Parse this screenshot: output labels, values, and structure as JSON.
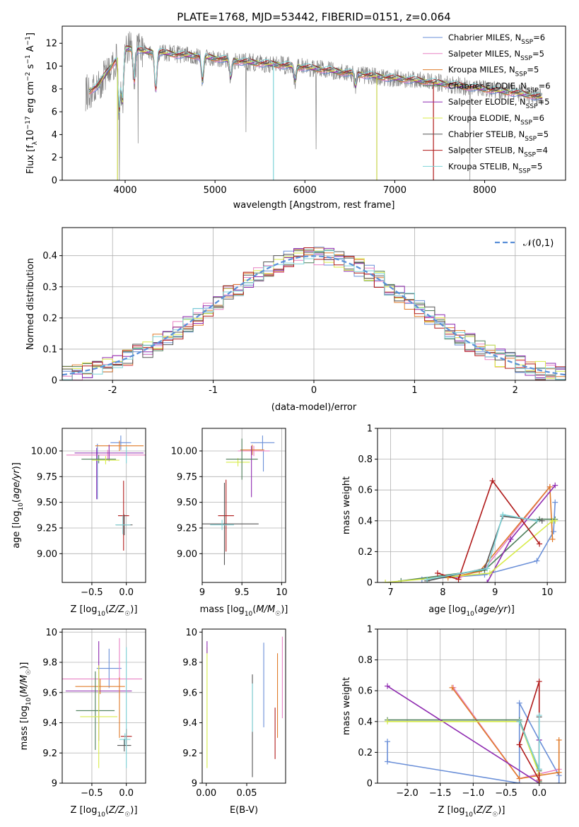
{
  "title": "PLATE=1768, MJD=53442, FIBERID=0151, z=0.064",
  "colors": {
    "Chabrier MILES": "#6a8fd8",
    "Salpeter MILES": "#e882c4",
    "Kroupa MILES": "#e07b2a",
    "Chabrier ELODIE": "#4e7f5a",
    "Salpeter ELODIE": "#8e2ab0",
    "Kroupa ELODIE": "#d8ec4a",
    "Chabrier STELIB": "#555555",
    "Salpeter STELIB": "#b01a1a",
    "Kroupa STELIB": "#7ed4d8",
    "data": "#808080"
  },
  "chart_data": [
    {
      "id": "spectrum",
      "type": "line",
      "title": "PLATE=1768, MJD=53442, FIBERID=0151, z=0.064",
      "xlabel": "wavelength [Angstrom, rest frame]",
      "ylabel": "Flux [f_λ 10^-17 erg cm^-2 s^-1 A^-1]",
      "xlim": [
        3300,
        8900
      ],
      "ylim": [
        0,
        13.5
      ],
      "xticks": [
        4000,
        5000,
        6000,
        7000,
        8000
      ],
      "yticks": [
        0,
        2,
        4,
        6,
        8,
        10,
        12
      ],
      "grid": false,
      "legend": "top-right",
      "legend_entries": [
        "Chabrier MILES, N_SSP=6",
        "Salpeter MILES, N_SSP=5",
        "Kroupa MILES, N_SSP=5",
        "Chabrier ELODIE, N_SSP=6",
        "Salpeter ELODIE, N_SSP=5",
        "Kroupa ELODIE, N_SSP=6",
        "Chabrier STELIB, N_SSP=5",
        "Salpeter STELIB, N_SSP=4",
        "Kroupa STELIB, N_SSP=5"
      ],
      "continuum": {
        "x": [
          3560,
          3700,
          3800,
          3900,
          4000,
          4100,
          4200,
          4400,
          4600,
          4800,
          5000,
          5300,
          5600,
          6000,
          6300,
          6600,
          6900,
          7200,
          7500,
          7800,
          8100,
          8400,
          8600
        ],
        "y": [
          7.6,
          8.3,
          9.5,
          10.6,
          11.5,
          11.6,
          11.3,
          11.2,
          11.0,
          10.9,
          10.7,
          10.4,
          10.2,
          9.9,
          9.6,
          9.3,
          9.0,
          8.8,
          8.5,
          8.2,
          7.9,
          7.6,
          7.3
        ]
      }
    },
    {
      "id": "residuals",
      "type": "line",
      "xlabel": "(data-model)/error",
      "ylabel": "Normed distribution",
      "xlim": [
        -2.5,
        2.5
      ],
      "ylim": [
        0,
        0.49
      ],
      "xticks": [
        -2,
        -1,
        0,
        1,
        2
      ],
      "yticks": [
        0.0,
        0.1,
        0.2,
        0.3,
        0.4
      ],
      "grid": true,
      "legend": "top-right",
      "legend_entries": [
        "𝒩(0,1)"
      ],
      "bin_width": 0.1
    },
    {
      "id": "age-vs-Z",
      "type": "scatter",
      "xlabel": "Z [log10(Z/Z☉)]",
      "ylabel": "age [log10(age/yr)]",
      "xlim": [
        -0.93,
        0.28
      ],
      "ylim": [
        8.72,
        10.22
      ],
      "xticks": [
        -0.5,
        0.0
      ],
      "yticks": [
        9.0,
        9.25,
        9.5,
        9.75,
        10.0
      ],
      "tick_labels_x": [
        "−0.5",
        "0.0"
      ],
      "tick_labels_y": [
        "9.00",
        "9.25",
        "9.50",
        "9.75",
        "10.00"
      ],
      "grid": true,
      "points": [
        {
          "model": "Chabrier MILES",
          "x": -0.08,
          "y": 10.08,
          "xerr": 0.15,
          "yerr": 0.07
        },
        {
          "model": "Chabrier MILES",
          "x": -0.42,
          "y": 9.8,
          "xerr": 0.0,
          "yerr": 0.27
        },
        {
          "model": "Kroupa MILES",
          "x": -0.1,
          "y": 10.05,
          "xerr": 0.35,
          "yerr": 0.05
        },
        {
          "model": "Salpeter MILES",
          "x": -0.27,
          "y": 9.96,
          "xerr": 0.6,
          "yerr": 0.05
        },
        {
          "model": "Salpeter ELODIE",
          "x": -0.25,
          "y": 9.98,
          "xerr": 0.5,
          "yerr": 0.08
        },
        {
          "model": "Salpeter ELODIE",
          "x": -0.43,
          "y": 9.78,
          "xerr": 0.0,
          "yerr": 0.25
        },
        {
          "model": "Chabrier ELODIE",
          "x": -0.4,
          "y": 9.92,
          "xerr": 0.25,
          "yerr": 0.04
        },
        {
          "model": "Kroupa ELODIE",
          "x": -0.3,
          "y": 9.91,
          "xerr": 0.2,
          "yerr": 0.04
        },
        {
          "model": "Kroupa STELIB",
          "x": 0.0,
          "y": 9.96,
          "xerr": 0.0,
          "yerr": 0.08
        },
        {
          "model": "Salpeter STELIB",
          "x": -0.04,
          "y": 9.37,
          "xerr": 0.08,
          "yerr": 0.34
        },
        {
          "model": "Chabrier STELIB",
          "x": -0.03,
          "y": 9.28,
          "xerr": 0.12,
          "yerr": 0.1
        },
        {
          "model": "Kroupa STELIB",
          "x": -0.05,
          "y": 9.28,
          "xerr": 0.11,
          "yerr": 0.09
        }
      ]
    },
    {
      "id": "age-vs-mass",
      "type": "scatter",
      "xlabel": "mass [log10(M/M☉)]",
      "xlim": [
        9.0,
        10.05
      ],
      "ylim": [
        8.72,
        10.22
      ],
      "xticks": [
        9.0,
        9.5,
        10.0
      ],
      "yticks": [
        9.0,
        9.25,
        9.5,
        9.75,
        10.0
      ],
      "tick_labels_y": [
        "9.00",
        "9.25",
        "9.50",
        "9.75",
        "10.00"
      ],
      "grid": true,
      "points": [
        {
          "model": "Chabrier MILES",
          "x": 9.76,
          "y": 10.08,
          "xerr": 0.15,
          "yerr": 0.07
        },
        {
          "model": "Chabrier MILES",
          "x": 9.77,
          "y": 9.9,
          "xerr": 0.0,
          "yerr": 0.1
        },
        {
          "model": "Salpeter MILES",
          "x": 9.65,
          "y": 10.0,
          "xerr": 0.2,
          "yerr": 0.05
        },
        {
          "model": "Kroupa MILES",
          "x": 9.63,
          "y": 10.01,
          "xerr": 0.15,
          "yerr": 0.05
        },
        {
          "model": "Salpeter ELODIE",
          "x": 9.62,
          "y": 9.8,
          "xerr": 0.0,
          "yerr": 0.25
        },
        {
          "model": "Kroupa ELODIE",
          "x": 9.45,
          "y": 9.89,
          "xerr": 0.15,
          "yerr": 0.04
        },
        {
          "model": "Chabrier ELODIE",
          "x": 9.5,
          "y": 9.92,
          "xerr": 0.2,
          "yerr": 0.2
        },
        {
          "model": "Salpeter STELIB",
          "x": 9.3,
          "y": 9.37,
          "xerr": 0.1,
          "yerr": 0.35
        },
        {
          "model": "Chabrier STELIB",
          "x": 9.28,
          "y": 9.29,
          "xerr": 0.43,
          "yerr": 0.4
        },
        {
          "model": "Kroupa STELIB",
          "x": 9.25,
          "y": 9.28,
          "xerr": 0.15,
          "yerr": 0.05
        }
      ]
    },
    {
      "id": "massweight-vs-age",
      "type": "line",
      "xlabel": "age [log10(age/yr)]",
      "ylabel": "mass weight",
      "xlim": [
        6.75,
        10.35
      ],
      "ylim": [
        0,
        1.0
      ],
      "xticks": [
        7,
        8,
        9,
        10
      ],
      "yticks": [
        0.0,
        0.2,
        0.4,
        0.6,
        0.8,
        1.0
      ],
      "grid": true,
      "series": [
        {
          "model": "Chabrier MILES",
          "x": [
            7.6,
            8.8,
            9.8,
            10.12,
            10.15
          ],
          "y": [
            0.02,
            0.05,
            0.14,
            0.33,
            0.52
          ]
        },
        {
          "model": "Salpeter MILES",
          "x": [
            8.3,
            8.8,
            10.05
          ],
          "y": [
            0.03,
            0.09,
            0.62
          ]
        },
        {
          "model": "Kroupa MILES",
          "x": [
            8.1,
            8.7,
            10.05,
            10.1
          ],
          "y": [
            0.03,
            0.07,
            0.62,
            0.28
          ]
        },
        {
          "model": "Chabrier ELODIE",
          "x": [
            7.2,
            8.8,
            9.85,
            10.15
          ],
          "y": [
            0.01,
            0.08,
            0.41,
            0.41
          ]
        },
        {
          "model": "Salpeter ELODIE",
          "x": [
            8.85,
            9.3,
            10.15
          ],
          "y": [
            0.0,
            0.28,
            0.63
          ]
        },
        {
          "model": "Kroupa ELODIE",
          "x": [
            6.9,
            8.9,
            10.1,
            10.15
          ],
          "y": [
            0.0,
            0.06,
            0.4,
            0.4
          ]
        },
        {
          "model": "Chabrier STELIB",
          "x": [
            7.7,
            8.8,
            9.15,
            9.9
          ],
          "y": [
            0.01,
            0.09,
            0.43,
            0.4
          ]
        },
        {
          "model": "Salpeter STELIB",
          "x": [
            7.9,
            8.3,
            8.95,
            9.85
          ],
          "y": [
            0.06,
            0.02,
            0.66,
            0.25
          ]
        },
        {
          "model": "Kroupa STELIB",
          "x": [
            7.7,
            8.85,
            9.15,
            9.8
          ],
          "y": [
            0.02,
            0.09,
            0.44,
            0.4
          ]
        }
      ]
    },
    {
      "id": "mass-vs-Z",
      "type": "scatter",
      "xlabel": "Z [log10(Z/Z☉)]",
      "ylabel": "mass [log10(M/M☉)]",
      "xlim": [
        -0.93,
        0.28
      ],
      "ylim": [
        9.0,
        10.02
      ],
      "xticks": [
        -0.5,
        0.0
      ],
      "tick_labels_x": [
        "−0.5",
        "0.0"
      ],
      "yticks": [
        9.0,
        9.2,
        9.4,
        9.6,
        9.8,
        10.0
      ],
      "grid": true,
      "points": [
        {
          "model": "Chabrier MILES",
          "x": -0.25,
          "y": 9.76,
          "xerr": 0.18,
          "yerr": 0.13
        },
        {
          "model": "Salpeter MILES",
          "x": -0.4,
          "y": 9.69,
          "xerr": 0.63,
          "yerr": 0.05
        },
        {
          "model": "Kroupa MILES",
          "x": -0.38,
          "y": 9.64,
          "xerr": 0.36,
          "yerr": 0.05
        },
        {
          "model": "Salpeter ELODIE",
          "x": -0.4,
          "y": 9.61,
          "xerr": 0.48,
          "yerr": 0.33
        },
        {
          "model": "Chabrier ELODIE",
          "x": -0.45,
          "y": 9.48,
          "xerr": 0.28,
          "yerr": 0.26
        },
        {
          "model": "Kroupa ELODIE",
          "x": -0.4,
          "y": 9.44,
          "xerr": 0.27,
          "yerr": 0.34
        },
        {
          "model": "Salpeter MILES",
          "x": -0.1,
          "y": 9.76,
          "xerr": 0.0,
          "yerr": 0.2
        },
        {
          "model": "Kroupa MILES",
          "x": -0.1,
          "y": 9.5,
          "xerr": 0.0,
          "yerr": 0.2
        },
        {
          "model": "Salpeter STELIB",
          "x": 0.0,
          "y": 9.31,
          "xerr": 0.08,
          "yerr": 0.05
        },
        {
          "model": "Kroupa STELIB",
          "x": -0.02,
          "y": 9.29,
          "xerr": 0.08,
          "yerr": 0.04
        },
        {
          "model": "Chabrier STELIB",
          "x": -0.03,
          "y": 9.25,
          "xerr": 0.1,
          "yerr": 0.04
        },
        {
          "model": "Kroupa STELIB",
          "x": 0.0,
          "y": 9.5,
          "xerr": 0.0,
          "yerr": 0.4
        }
      ]
    },
    {
      "id": "mass-vs-EBV",
      "type": "scatter",
      "xlabel": "E(B-V)",
      "xlim": [
        -0.005,
        0.098
      ],
      "ylim": [
        9.0,
        10.02
      ],
      "xticks": [
        0.0,
        0.05
      ],
      "tick_labels_x": [
        "0.00",
        "0.05"
      ],
      "yticks": [
        9.0,
        9.2,
        9.4,
        9.6,
        9.8,
        10.0
      ],
      "grid": false,
      "points": [
        {
          "model": "Kroupa ELODIE",
          "x": 0.001,
          "y": 9.5,
          "xerr": 0.0,
          "yerr": 0.4
        },
        {
          "model": "Salpeter ELODIE",
          "x": 0.001,
          "y": 9.9,
          "xerr": 0.0,
          "yerr": 0.04
        },
        {
          "model": "Chabrier STELIB",
          "x": 0.057,
          "y": 9.38,
          "xerr": 0.0,
          "yerr": 0.34
        },
        {
          "model": "Kroupa STELIB",
          "x": 0.057,
          "y": 9.5,
          "xerr": 0.0,
          "yerr": 0.16
        },
        {
          "model": "Chabrier MILES",
          "x": 0.071,
          "y": 9.65,
          "xerr": 0.0,
          "yerr": 0.28
        },
        {
          "model": "Salpeter STELIB",
          "x": 0.085,
          "y": 9.33,
          "xerr": 0.0,
          "yerr": 0.17
        },
        {
          "model": "Kroupa MILES",
          "x": 0.088,
          "y": 9.58,
          "xerr": 0.0,
          "yerr": 0.28
        },
        {
          "model": "Salpeter MILES",
          "x": 0.094,
          "y": 9.7,
          "xerr": 0.0,
          "yerr": 0.27
        }
      ]
    },
    {
      "id": "massweight-vs-Z",
      "type": "line",
      "xlabel": "Z [log10(Z/Z☉)]",
      "ylabel": "mass weight",
      "xlim": [
        -2.45,
        0.4
      ],
      "ylim": [
        0,
        1.0
      ],
      "xticks": [
        -2.0,
        -1.5,
        -1.0,
        -0.5,
        0.0
      ],
      "tick_labels_x": [
        "−2.0",
        "−1.5",
        "−1.0",
        "−0.5",
        "0.0"
      ],
      "yticks": [
        0.0,
        0.2,
        0.4,
        0.6,
        0.8,
        1.0
      ],
      "grid": true,
      "series": [
        {
          "model": "Chabrier MILES",
          "x": [
            -2.3,
            -2.3,
            -0.3,
            -0.3,
            0.0,
            0.3,
            0.3
          ],
          "y": [
            0.27,
            0.14,
            0.0,
            0.52,
            0.28,
            0.05,
            0.0
          ]
        },
        {
          "model": "Salpeter MILES",
          "x": [
            -1.3,
            -0.3,
            0.3
          ],
          "y": [
            0.62,
            0.03,
            0.09
          ]
        },
        {
          "model": "Kroupa MILES",
          "x": [
            -1.32,
            -0.3,
            0.3,
            0.3
          ],
          "y": [
            0.62,
            0.03,
            0.07,
            0.28
          ]
        },
        {
          "model": "Chabrier ELODIE",
          "x": [
            -2.3,
            -0.3,
            0.0,
            0.0
          ],
          "y": [
            0.41,
            0.41,
            0.08,
            0.01
          ]
        },
        {
          "model": "Salpeter ELODIE",
          "x": [
            -2.3,
            0.0,
            0.0
          ],
          "y": [
            0.63,
            0.0,
            0.28
          ]
        },
        {
          "model": "Kroupa ELODIE",
          "x": [
            -2.3,
            -0.3,
            0.0,
            0.0
          ],
          "y": [
            0.4,
            0.4,
            0.06,
            0.0
          ]
        },
        {
          "model": "Chabrier STELIB",
          "x": [
            -0.3,
            0.0,
            0.0
          ],
          "y": [
            0.4,
            0.09,
            0.43
          ]
        },
        {
          "model": "Salpeter STELIB",
          "x": [
            -0.3,
            0.0,
            0.0,
            -0.3
          ],
          "y": [
            0.25,
            0.66,
            0.02,
            0.25
          ]
        },
        {
          "model": "Kroupa STELIB",
          "x": [
            -0.3,
            0.0,
            0.0
          ],
          "y": [
            0.4,
            0.09,
            0.44
          ]
        }
      ]
    }
  ]
}
